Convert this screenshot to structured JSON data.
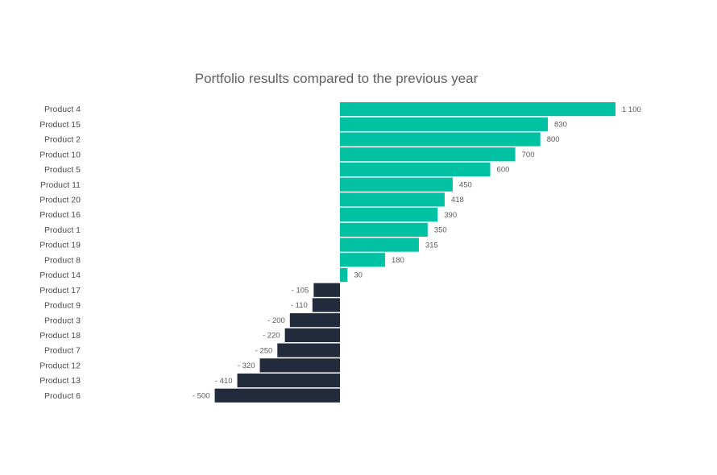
{
  "chart_data": {
    "type": "bar",
    "orientation": "horizontal",
    "title": "Portfolio results compared to the previous year",
    "categories": [
      "Product 4",
      "Product 15",
      "Product 2",
      "Product 10",
      "Product 5",
      "Product 11",
      "Product 20",
      "Product 16",
      "Product 1",
      "Product 19",
      "Product 8",
      "Product 14",
      "Product 17",
      "Product 9",
      "Product 3",
      "Product 18",
      "Product 7",
      "Product 12",
      "Product 13",
      "Product 6"
    ],
    "values": [
      1100,
      830,
      800,
      700,
      600,
      450,
      418,
      390,
      350,
      315,
      180,
      30,
      -105,
      -110,
      -200,
      -220,
      -250,
      -320,
      -410,
      -500
    ],
    "value_labels": [
      "1 100",
      "830",
      "800",
      "700",
      "600",
      "450",
      "418",
      "390",
      "350",
      "315",
      "180",
      "30",
      "- 105",
      "- 110",
      "- 200",
      "- 220",
      "- 250",
      "- 320",
      "- 410",
      "- 500"
    ],
    "xlim": [
      -500,
      1100
    ],
    "grid": false,
    "legend": "none",
    "colors": {
      "positive": "#00c2a2",
      "negative": "#222b3c"
    }
  }
}
